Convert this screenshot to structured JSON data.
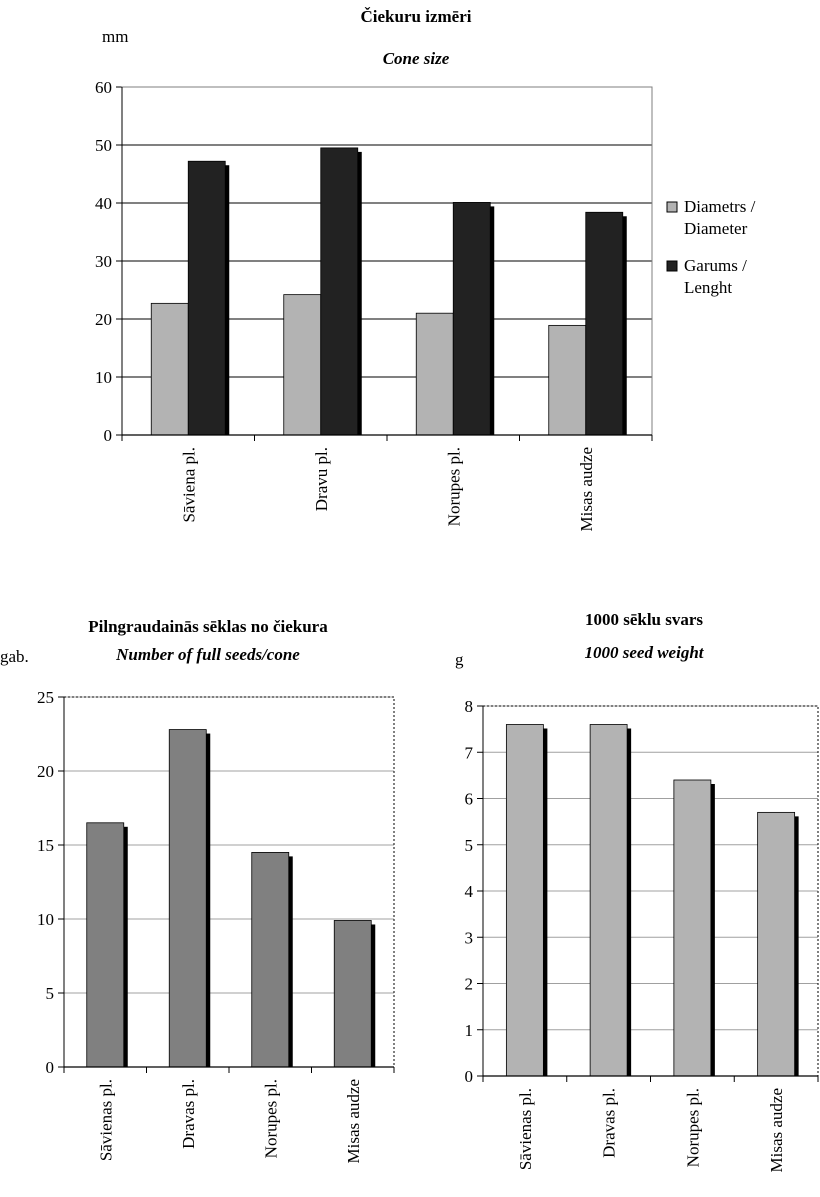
{
  "chart_data": [
    {
      "type": "bar",
      "title": "Čiekuru izmēri",
      "subtitle": "Cone size",
      "ylabel": "mm",
      "xlabel": "",
      "ylim": [
        0,
        60
      ],
      "yticks": [
        0,
        10,
        20,
        30,
        40,
        50,
        60
      ],
      "grid": true,
      "legend_position": "right",
      "categories": [
        "Sāviena pl.",
        "Dravu pl.",
        "Norupes pl.",
        "Misas audze"
      ],
      "series": [
        {
          "name": "Diametrs / Diameter",
          "legend_lines": [
            "Diametrs /",
            "Diameter"
          ],
          "color": "#b3b3b3",
          "values": [
            22.7,
            24.2,
            21.0,
            18.9
          ]
        },
        {
          "name": "Garums / Lenght",
          "legend_lines": [
            "Garums /",
            "Lenght"
          ],
          "color": "#222222",
          "values": [
            47.2,
            49.5,
            40.1,
            38.4
          ]
        }
      ]
    },
    {
      "type": "bar",
      "title": "Pilngraudainās sēklas no čiekura",
      "subtitle": "Number of full seeds/cone",
      "ylabel": "gab.",
      "xlabel": "",
      "ylim": [
        0,
        25
      ],
      "yticks": [
        0,
        5,
        10,
        15,
        20,
        25
      ],
      "grid": true,
      "categories": [
        "Sāvienas pl.",
        "Dravas pl.",
        "Norupes pl.",
        "Misas audze"
      ],
      "series": [
        {
          "color": "#808080",
          "values": [
            16.5,
            22.8,
            14.5,
            9.9
          ]
        }
      ]
    },
    {
      "type": "bar",
      "title": "1000 sēklu svars",
      "subtitle": "1000 seed weight",
      "ylabel": "g",
      "xlabel": "",
      "ylim": [
        0,
        8
      ],
      "yticks": [
        0,
        1,
        2,
        3,
        4,
        5,
        6,
        7,
        8
      ],
      "grid": true,
      "categories": [
        "Sāvienas pl.",
        "Dravas pl.",
        "Norupes pl.",
        "Misas audze"
      ],
      "series": [
        {
          "color": "#b3b3b3",
          "values": [
            7.6,
            7.6,
            6.4,
            5.7
          ]
        }
      ]
    }
  ]
}
